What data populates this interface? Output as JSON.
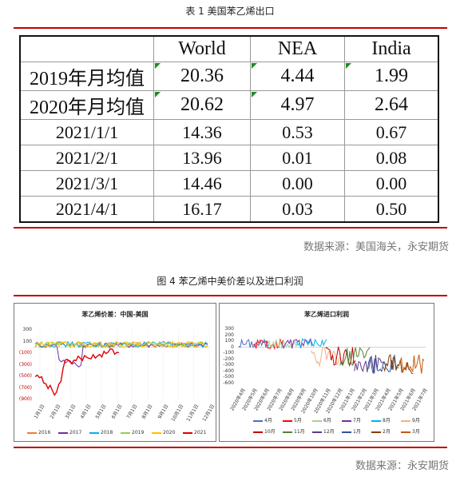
{
  "table_caption": "表 1 美国苯乙烯出口",
  "table": {
    "columns": [
      "World",
      "NEA",
      "India"
    ],
    "rows": [
      {
        "label": "2019年月均值",
        "values": [
          "20.36",
          "4.44",
          "1.99"
        ]
      },
      {
        "label": "2020年月均值",
        "values": [
          "20.62",
          "4.97",
          "2.64"
        ]
      },
      {
        "label": "2021/1/1",
        "values": [
          "14.36",
          "0.53",
          "0.67"
        ]
      },
      {
        "label": "2021/2/1",
        "values": [
          "13.96",
          "0.01",
          "0.08"
        ]
      },
      {
        "label": "2021/3/1",
        "values": [
          "14.46",
          "0.00",
          "0.00"
        ]
      },
      {
        "label": "2021/4/1",
        "values": [
          "16.17",
          "0.03",
          "0.50"
        ]
      }
    ]
  },
  "source_1": "数据来源：美国海关，永安期货",
  "figure_caption": "图 4 苯乙烯中美价差以及进口利润",
  "source_2": "数据来源：永安期货",
  "chart_data": [
    {
      "type": "line",
      "title": "苯乙烯价差：中国-美国",
      "x_ticks": [
        "1月1日",
        "2月1日",
        "3月1日",
        "4月1日",
        "5月1日",
        "6月1日",
        "7月1日",
        "8月1日",
        "9月1日",
        "10月1日",
        "11月1日",
        "12月1日"
      ],
      "y_ticks": [
        "300",
        "100",
        "(100)",
        "(300)",
        "(500)",
        "(700)",
        "(900)"
      ],
      "ylim": [
        -900,
        300
      ],
      "series": [
        {
          "name": "2016",
          "color": "#ed7d31"
        },
        {
          "name": "2017",
          "color": "#7030a0"
        },
        {
          "name": "2018",
          "color": "#00b0f0"
        },
        {
          "name": "2019",
          "color": "#92d050"
        },
        {
          "name": "2020",
          "color": "#ffc000"
        },
        {
          "name": "2021",
          "color": "#e00000"
        }
      ]
    },
    {
      "type": "line",
      "title": "苯乙烯进口利润",
      "x_ticks": [
        "2020年4月",
        "2020年5月",
        "2020年6月",
        "2020年7月",
        "2020年8月",
        "2020年9月",
        "2020年10月",
        "2020年11月",
        "2020年12月",
        "2021年1月",
        "2021年2月",
        "2021年3月",
        "2021年4月",
        "2021年5月",
        "2021年6月",
        "2021年7月"
      ],
      "y_ticks": [
        "300",
        "200",
        "100",
        "0",
        "-100",
        "-200",
        "-300",
        "-400",
        "-500",
        "-600"
      ],
      "ylim": [
        -600,
        300
      ],
      "series": [
        {
          "name": "4月",
          "color": "#4472c4"
        },
        {
          "name": "5月",
          "color": "#ff0000"
        },
        {
          "name": "6月",
          "color": "#a9d18e"
        },
        {
          "name": "7月",
          "color": "#7030a0"
        },
        {
          "name": "8月",
          "color": "#00b0f0"
        },
        {
          "name": "9月",
          "color": "#f4b183"
        },
        {
          "name": "10月",
          "color": "#c00000"
        },
        {
          "name": "11月",
          "color": "#548235"
        },
        {
          "name": "12月",
          "color": "#5b3c8c"
        },
        {
          "name": "1月",
          "color": "#2f5597"
        },
        {
          "name": "2月",
          "color": "#843c0c"
        },
        {
          "name": "3月",
          "color": "#c55a11"
        }
      ]
    }
  ]
}
